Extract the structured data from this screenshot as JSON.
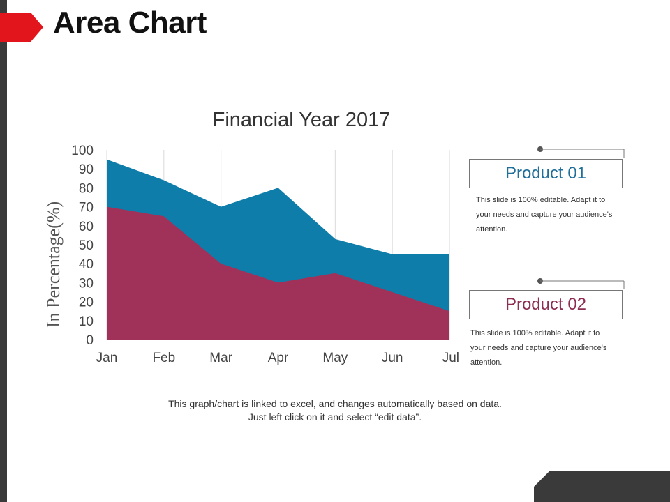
{
  "page": {
    "title": "Area Chart"
  },
  "colors": {
    "product_01": "#0E7DAA",
    "product_02": "#A0325A",
    "accent": "#E3151C",
    "dark": "#3A3A3A"
  },
  "chart_data": {
    "type": "area",
    "title": "Financial Year 2017",
    "xlabel": "",
    "ylabel": "In Percentage(%)",
    "categories": [
      "Jan",
      "Feb",
      "Mar",
      "Apr",
      "May",
      "Jun",
      "Jul"
    ],
    "yticks": [
      "0",
      "10",
      "20",
      "30",
      "40",
      "50",
      "60",
      "70",
      "80",
      "90",
      "100"
    ],
    "ylim": [
      0,
      100
    ],
    "grid": "vertical",
    "legend": "right",
    "series": [
      {
        "name": "Product 01",
        "values": [
          95,
          84,
          70,
          80,
          53,
          45,
          45
        ]
      },
      {
        "name": "Product 02",
        "values": [
          70,
          65,
          40,
          30,
          35,
          25,
          15
        ]
      }
    ]
  },
  "legend": {
    "product_01": {
      "label": "Product 01",
      "description": [
        "This slide is 100% editable. Adapt it to",
        "your needs and capture your audience's",
        "attention."
      ]
    },
    "product_02": {
      "label": "Product 02",
      "description": [
        "This slide is 100% editable. Adapt it to",
        "your needs and capture your audience's",
        "attention."
      ]
    }
  },
  "footer": {
    "line1": "This graph/chart is linked to excel, and changes automatically based on data.",
    "line2": "Just left click on it and select “edit data”."
  }
}
